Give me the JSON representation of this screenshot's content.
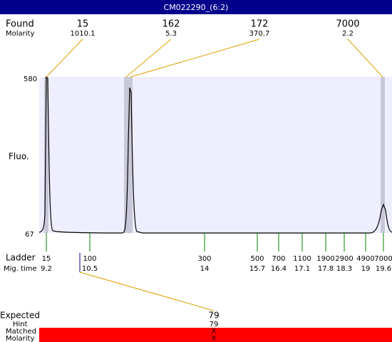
{
  "header": {
    "title": "CM022290_(6:2)"
  },
  "found": {
    "label": "Found",
    "sublabel": "Molarity",
    "peaks": [
      {
        "size": 15,
        "molarity": 1010.1
      },
      {
        "size": 162,
        "molarity": 5.3
      },
      {
        "size": 172,
        "molarity": 370.7
      },
      {
        "size": 7000,
        "molarity": 2.2
      }
    ]
  },
  "axis": {
    "label": "Fluo.",
    "max": 580,
    "min": 67
  },
  "ladder": {
    "label": "Ladder",
    "sublabel": "Mig. time",
    "sizes": [
      15,
      100,
      300,
      500,
      700,
      1100,
      1900,
      2900,
      4900,
      7000
    ],
    "times": [
      9.2,
      10.5,
      14,
      15.7,
      16.4,
      17.1,
      17.8,
      18.3,
      19,
      19.6
    ]
  },
  "expected": {
    "label": "Expected",
    "value": 79,
    "hint_label": "Hint",
    "hint": 79,
    "matched_label": "Matched",
    "matched": "X",
    "molarity_label": "Molarity",
    "molarity": "X"
  }
}
